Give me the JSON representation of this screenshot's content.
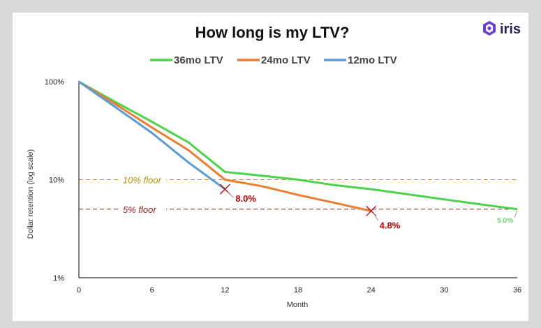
{
  "brand": {
    "name": "iris",
    "icon": "hexagon-logo-icon",
    "color": "#6c3fd4"
  },
  "chart_data": {
    "type": "line",
    "title": "How long is my LTV?",
    "xlabel": "Month",
    "ylabel": "Dollar retention (log scale)",
    "y_scale": "log",
    "xlim": [
      0,
      36
    ],
    "ylim": [
      1,
      100
    ],
    "x_ticks": [
      "0",
      "6",
      "12",
      "18",
      "24",
      "30",
      "36"
    ],
    "y_ticks": [
      "100%",
      "10%",
      "1%"
    ],
    "legend_placement": "top",
    "series": [
      {
        "name": "36mo LTV",
        "color": "#4cd34c",
        "x": [
          0,
          3,
          6,
          9,
          12,
          15,
          18,
          21,
          24,
          27,
          30,
          33,
          36
        ],
        "y": [
          100,
          62,
          39,
          24,
          12,
          11,
          10,
          8.8,
          8,
          7.1,
          6.3,
          5.6,
          5.0
        ]
      },
      {
        "name": "24mo LTV",
        "color": "#ed7d31",
        "x": [
          0,
          3,
          6,
          9,
          12,
          15,
          18,
          21,
          24
        ],
        "y": [
          100,
          59,
          34,
          20,
          10,
          8.6,
          7,
          5.8,
          4.8
        ]
      },
      {
        "name": "12mo LTV",
        "color": "#5b9bd5",
        "x": [
          0,
          3,
          6,
          9,
          12
        ],
        "y": [
          100,
          55,
          30,
          15,
          8.0
        ]
      }
    ],
    "reference_lines": [
      {
        "label": "10% floor",
        "y": 10,
        "color": "#bf9000"
      },
      {
        "label": "5% floor",
        "y": 5,
        "color": "#9b1b1b"
      }
    ],
    "annotations": [
      {
        "text": "8.0%",
        "x": 12,
        "y": 8.0,
        "marker": "x",
        "color": "#c00000"
      },
      {
        "text": "4.8%",
        "x": 24,
        "y": 4.8,
        "marker": "x",
        "color": "#c00000"
      },
      {
        "text": "5.0%",
        "x": 36,
        "y": 5.0,
        "color": "#33cc33"
      }
    ]
  }
}
